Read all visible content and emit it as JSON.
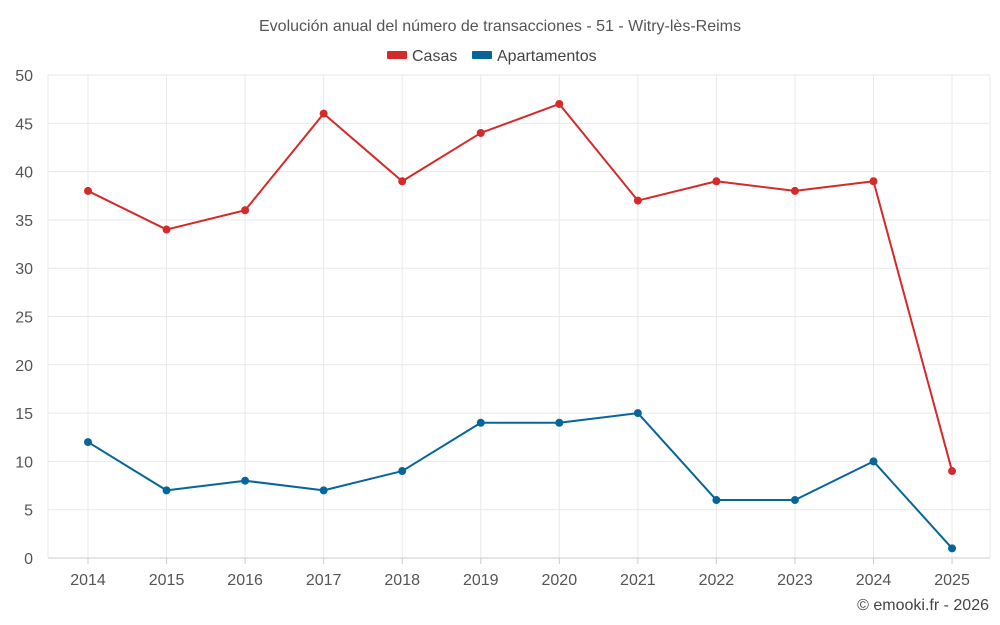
{
  "chart_data": {
    "type": "line",
    "title": "Evolución anual del número de transacciones - 51 - Witry-lès-Reims",
    "categories": [
      "2014",
      "2015",
      "2016",
      "2017",
      "2018",
      "2019",
      "2020",
      "2021",
      "2022",
      "2023",
      "2024",
      "2025"
    ],
    "series": [
      {
        "name": "Casas",
        "color": "#d42a2a",
        "values": [
          38,
          34,
          36,
          46,
          39,
          44,
          47,
          37,
          39,
          38,
          39,
          9
        ]
      },
      {
        "name": "Apartamentos",
        "color": "#066699",
        "values": [
          12,
          7,
          8,
          7,
          9,
          14,
          14,
          15,
          6,
          6,
          10,
          1
        ]
      }
    ],
    "ylim": [
      0,
      50
    ],
    "yticks": [
      "0",
      "5",
      "10",
      "15",
      "20",
      "25",
      "30",
      "35",
      "40",
      "45",
      "50"
    ],
    "xlabel": "",
    "ylabel": "",
    "grid": true,
    "legend_position": "top-center"
  },
  "credit": "© emooki.fr - 2026"
}
